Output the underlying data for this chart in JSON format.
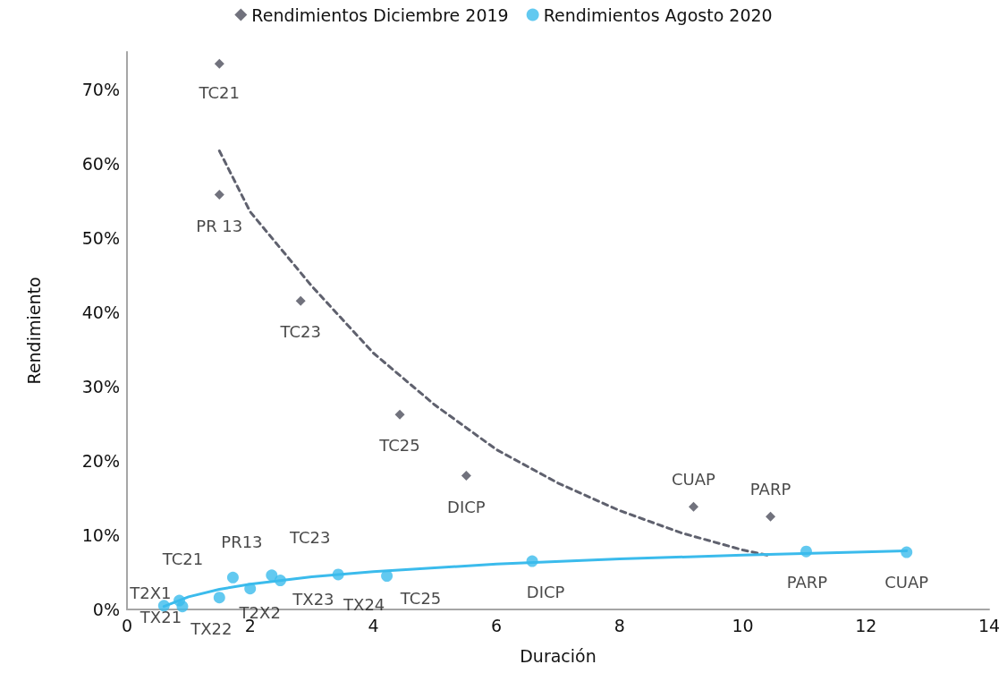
{
  "chart_data": {
    "type": "scatter",
    "xlabel": "Duración",
    "ylabel": "Rendimiento",
    "xlim": [
      0,
      14
    ],
    "xticks": [
      0,
      2,
      4,
      6,
      8,
      10,
      12,
      14
    ],
    "ylim": [
      0,
      75
    ],
    "yticks": [
      {
        "value": 0,
        "label": "0%"
      },
      {
        "value": 10,
        "label": "10%"
      },
      {
        "value": 20,
        "label": "20%"
      },
      {
        "value": 30,
        "label": "30%"
      },
      {
        "value": 40,
        "label": "40%"
      },
      {
        "value": 50,
        "label": "50%"
      },
      {
        "value": 60,
        "label": "60%"
      },
      {
        "value": 70,
        "label": "70%"
      }
    ],
    "grid": false,
    "legend": "top",
    "series": [
      {
        "name": "Rendimientos Diciembre 2019",
        "color": "#4d4f5c",
        "marker": "diamond",
        "x": [
          1.5,
          1.5,
          2.82,
          4.43,
          5.51,
          9.2,
          10.45
        ],
        "values": [
          73.4,
          55.8,
          41.5,
          26.2,
          18.0,
          13.8,
          12.5
        ]
      },
      {
        "name": "Rendimientos Agosto 2020",
        "color": "#3bbbec",
        "marker": "circle",
        "x": [
          0.6,
          0.85,
          0.9,
          1.5,
          1.72,
          2.0,
          2.35,
          2.49,
          3.43,
          4.22,
          6.58,
          11.03,
          12.66
        ],
        "values": [
          0.5,
          1.2,
          0.4,
          1.6,
          4.3,
          2.8,
          4.6,
          3.9,
          4.7,
          4.5,
          6.5,
          7.8,
          7.7
        ]
      },
      {
        "type": "line",
        "color": "#5f616e",
        "marker": "none",
        "line_style": "dashed",
        "x": [
          1.5,
          2,
          3,
          4,
          5,
          6,
          7,
          8,
          9,
          10,
          10.45
        ],
        "values": [
          61.7,
          53.5,
          43.5,
          34.5,
          27.5,
          21.5,
          17,
          13.3,
          10.3,
          8,
          7.2
        ]
      },
      {
        "type": "line",
        "color": "#3bbbec",
        "marker": "none",
        "line_style": "solid",
        "x": [
          0.6,
          1,
          1.5,
          2,
          3,
          4,
          6,
          8,
          10,
          12.66
        ],
        "values": [
          0.4,
          1.7,
          2.7,
          3.4,
          4.4,
          5.1,
          6.1,
          6.8,
          7.3,
          7.9
        ]
      }
    ],
    "annotations": [
      {
        "text": "TC21",
        "x": 1.5,
        "y": 73.4
      },
      {
        "text": "PR 13",
        "x": 1.5,
        "y": 55.8
      },
      {
        "text": "TC23",
        "x": 2.82,
        "y": 41.5
      },
      {
        "text": "TC25",
        "x": 4.43,
        "y": 26.2
      },
      {
        "text": "DICP",
        "x": 5.51,
        "y": 18.0
      },
      {
        "text": "CUAP",
        "x": 9.2,
        "y": 13.8
      },
      {
        "text": "PARP",
        "x": 10.45,
        "y": 12.5
      },
      {
        "text": "T2X1",
        "x": 0.6,
        "y": 0.5
      },
      {
        "text": "TC21",
        "x": 0.85,
        "y": 1.2
      },
      {
        "text": "TX21",
        "x": 0.9,
        "y": 0.4
      },
      {
        "text": "TX22",
        "x": 1.5,
        "y": 1.6
      },
      {
        "text": "PR13",
        "x": 1.72,
        "y": 4.3
      },
      {
        "text": "T2X2",
        "x": 2.0,
        "y": 2.8
      },
      {
        "text": "TC23",
        "x": 2.35,
        "y": 4.6
      },
      {
        "text": "TX23",
        "x": 2.49,
        "y": 3.9
      },
      {
        "text": "TX24",
        "x": 3.43,
        "y": 4.7
      },
      {
        "text": "TC25",
        "x": 4.22,
        "y": 4.5
      },
      {
        "text": "DICP",
        "x": 6.58,
        "y": 6.5
      },
      {
        "text": "PARP",
        "x": 11.03,
        "y": 7.8
      },
      {
        "text": "CUAP",
        "x": 12.66,
        "y": 7.7
      }
    ]
  }
}
